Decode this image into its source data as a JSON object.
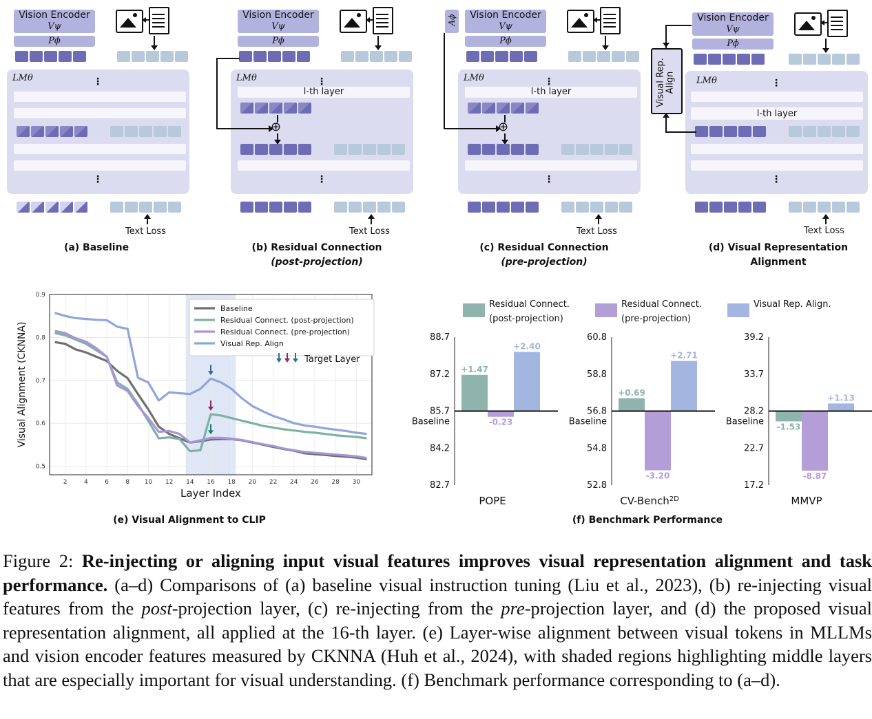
{
  "diagrams": {
    "vision_encoder": "Vision Encoder",
    "v_psi": "Vψ",
    "p_phi": "Pϕ",
    "a_phi": "Aϕ",
    "lm_theta": "LMθ",
    "lth_layer": "l-th layer",
    "text_loss": "Text Loss",
    "rep_align": "Visual Rep. Align",
    "dots": "⋮",
    "plus": "⊕",
    "captions": {
      "a": "(a) Baseline",
      "b1": "(b) Residual Connection",
      "b2": "(post-projection)",
      "c1": "(c) Residual Connection",
      "c2": "(pre-projection)",
      "d1": "(d) Visual Representation",
      "d2": "Alignment"
    }
  },
  "chart_e_title": "(e) Visual Alignment to CLIP",
  "chart_f_title": "(f) Benchmark Performance",
  "target_layer_label": "Target Layer",
  "chart_data": [
    {
      "type": "line",
      "title": "(e) Visual Alignment to CLIP",
      "xlabel": "Layer Index",
      "ylabel": "Visual Alignment (CKNNA)",
      "xlim": [
        1,
        31
      ],
      "ylim": [
        0.48,
        0.9
      ],
      "xticks": [
        2,
        4,
        6,
        8,
        10,
        12,
        14,
        16,
        18,
        20,
        22,
        24,
        26,
        28,
        30
      ],
      "yticks": [
        0.5,
        0.6,
        0.7,
        0.8,
        0.9
      ],
      "shaded_region": [
        13.6,
        18.4
      ],
      "target_layer": 16,
      "x": [
        1,
        2,
        3,
        4,
        5,
        6,
        7,
        8,
        9,
        10,
        11,
        12,
        13,
        14,
        15,
        16,
        17,
        18,
        19,
        20,
        21,
        22,
        23,
        24,
        25,
        26,
        27,
        28,
        29,
        30,
        31
      ],
      "series": [
        {
          "name": "Baseline",
          "color": "#6f6f6f",
          "values": [
            0.789,
            0.785,
            0.772,
            0.765,
            0.755,
            0.745,
            0.722,
            0.705,
            0.668,
            0.632,
            0.592,
            0.575,
            0.565,
            0.555,
            0.558,
            0.562,
            0.563,
            0.563,
            0.56,
            0.555,
            0.55,
            0.545,
            0.54,
            0.536,
            0.53,
            0.528,
            0.526,
            0.524,
            0.522,
            0.52,
            0.516
          ]
        },
        {
          "name": "Residual Connect. (post-projection)",
          "color": "#7fb0a6",
          "values": [
            0.81,
            0.805,
            0.795,
            0.785,
            0.77,
            0.755,
            0.695,
            0.68,
            0.645,
            0.605,
            0.565,
            0.567,
            0.563,
            0.535,
            0.537,
            0.621,
            0.618,
            0.612,
            0.606,
            0.6,
            0.594,
            0.59,
            0.586,
            0.583,
            0.58,
            0.578,
            0.575,
            0.572,
            0.57,
            0.568,
            0.565
          ]
        },
        {
          "name": "Residual Connect. (pre-projection)",
          "color": "#a795d8",
          "values": [
            0.815,
            0.81,
            0.798,
            0.79,
            0.775,
            0.755,
            0.688,
            0.675,
            0.64,
            0.612,
            0.58,
            0.582,
            0.575,
            0.555,
            0.56,
            0.566,
            0.566,
            0.564,
            0.561,
            0.556,
            0.551,
            0.547,
            0.541,
            0.537,
            0.533,
            0.531,
            0.529,
            0.527,
            0.525,
            0.523,
            0.519
          ]
        },
        {
          "name": "Visual Rep. Align",
          "color": "#8ea6db",
          "values": [
            0.857,
            0.85,
            0.845,
            0.843,
            0.841,
            0.84,
            0.825,
            0.82,
            0.706,
            0.695,
            0.653,
            0.672,
            0.67,
            0.668,
            0.68,
            0.704,
            0.695,
            0.68,
            0.658,
            0.64,
            0.628,
            0.617,
            0.609,
            0.6,
            0.595,
            0.592,
            0.588,
            0.585,
            0.582,
            0.578,
            0.575
          ]
        }
      ],
      "arrow_colors": [
        "#2e6b9e",
        "#8c2a6c",
        "#1a7f6e"
      ]
    },
    {
      "type": "bar",
      "title": "(f) Benchmark Performance",
      "legend": [
        {
          "name": "Residual Connect.",
          "sub": "(post-projection)",
          "color": "#8fb3ad"
        },
        {
          "name": "Residual Connect.",
          "sub": "(pre-projection)",
          "color": "#b39ed8"
        },
        {
          "name": "Visual Rep. Align.",
          "sub": "",
          "color": "#a3b6e0"
        }
      ],
      "panels": [
        {
          "benchmark": "POPE",
          "baseline": 85.7,
          "yticks": [
            "88.7",
            "87.2",
            "85.7",
            "84.2",
            "82.7"
          ],
          "ylim": [
            82.7,
            88.7
          ],
          "deltas": [
            1.47,
            -0.23,
            2.4
          ],
          "labels": [
            "+1.47",
            "-0.23",
            "+2.40"
          ]
        },
        {
          "benchmark": "CV-Bench",
          "sup": "2D",
          "baseline": 56.8,
          "yticks": [
            "60.8",
            "58.8",
            "56.8",
            "54.8",
            "52.8"
          ],
          "ylim": [
            52.8,
            60.8
          ],
          "deltas": [
            0.69,
            -3.2,
            2.71
          ],
          "labels": [
            "+0.69",
            "-3.20",
            "+2.71"
          ]
        },
        {
          "benchmark": "MMVP",
          "baseline": 28.2,
          "yticks": [
            "39.2",
            "33.7",
            "28.2",
            "22.7",
            "17.2"
          ],
          "ylim": [
            17.2,
            39.2
          ],
          "deltas": [
            -1.53,
            -8.87,
            1.13
          ],
          "labels": [
            "-1.53",
            "-8.87",
            "+1.13"
          ]
        }
      ],
      "baseline_label": "Baseline"
    }
  ],
  "caption": {
    "lead": "Figure 2: ",
    "bold": "Re-injecting or aligning input visual features improves visual representation alignment and task performance.",
    "p1": " (a–d) Comparisons of (a) baseline visual instruction tuning (Liu et al., 2023), (b) re-injecting visual features from the ",
    "i1": "post",
    "p2": "-projection layer, (c) re-injecting from the ",
    "i2": "pre",
    "p3": "-projection layer, and (d) the proposed visual representation alignment, all applied at the 16-th layer. (e) Layer-wise alignment between visual tokens in MLLMs and vision encoder features measured by CKNNA (Huh et al., 2024), with shaded regions highlighting middle layers that are especially important for visual understanding. (f) Benchmark performance corresponding to (a–d)."
  }
}
